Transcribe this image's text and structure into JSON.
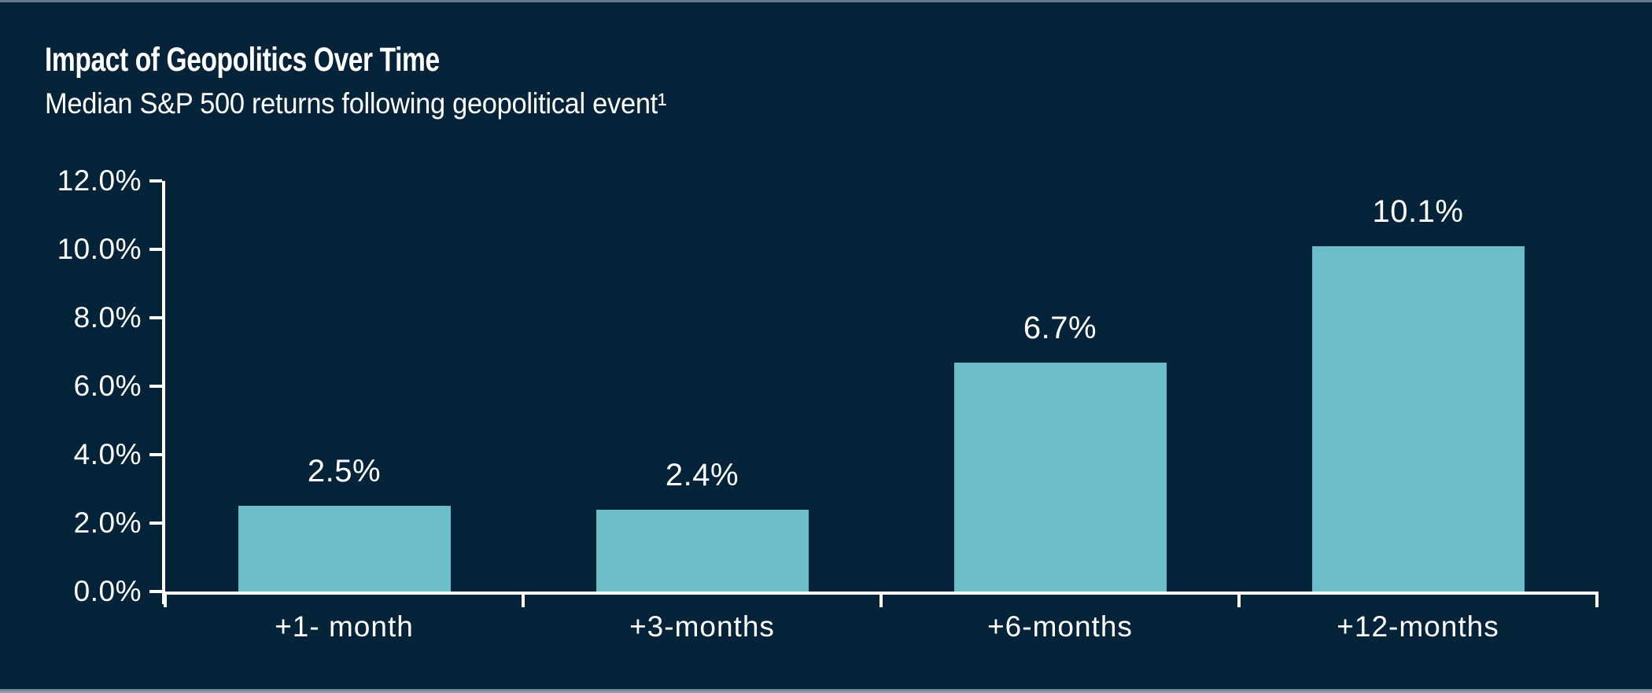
{
  "page": {
    "background_color": "#05243A",
    "top_strip_color": "#66788C",
    "bottom_strip_color": "#8E99A8"
  },
  "header": {
    "title": "Impact of Geopolitics Over Time",
    "subtitle": "Median S&P 500 returns following geopolitical event¹"
  },
  "chart_data": {
    "type": "bar",
    "title": "Impact of Geopolitics Over Time",
    "subtitle": "Median S&P 500 returns following geopolitical event¹",
    "categories": [
      "+1- month",
      "+3-months",
      "+6-months",
      "+12-months"
    ],
    "values": [
      2.5,
      2.4,
      6.7,
      10.1
    ],
    "data_labels": [
      "2.5%",
      "2.4%",
      "6.7%",
      "10.1%"
    ],
    "y_tick_labels": [
      "0.0%",
      "2.0%",
      "4.0%",
      "6.0%",
      "8.0%",
      "10.0%",
      "12.0%"
    ],
    "ylim": [
      0,
      12
    ],
    "y_step": 2,
    "xlabel": "",
    "ylabel": "",
    "grid": false,
    "legend": false,
    "bar_color": "#6BBEC7",
    "axis_color": "#FFFFFF",
    "text_color": "#FFFFFF"
  }
}
